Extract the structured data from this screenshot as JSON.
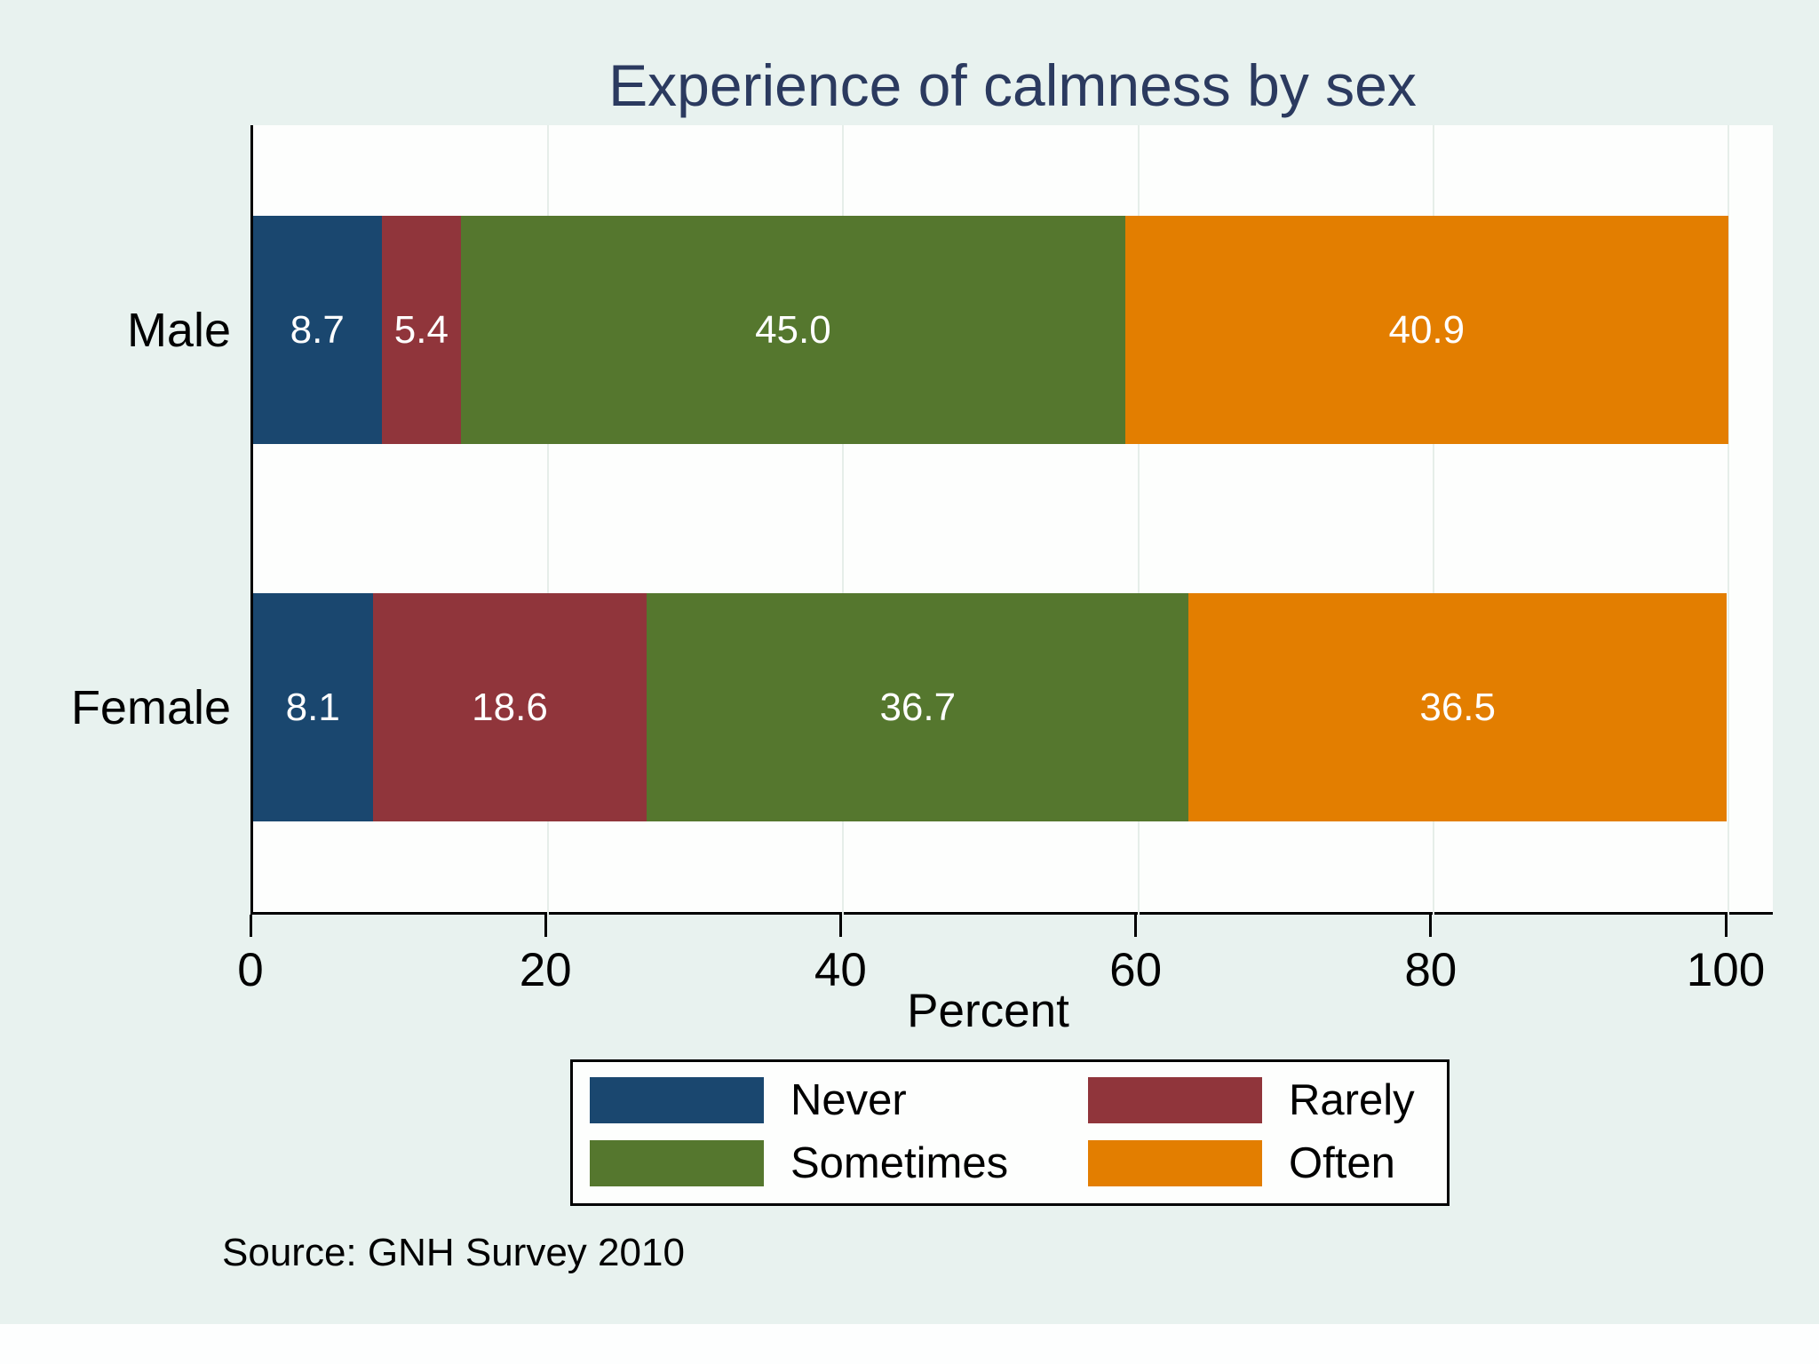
{
  "chart_data": {
    "type": "bar",
    "orientation": "horizontal",
    "stacked": true,
    "percent_stacked": true,
    "title": "Experience of calmness by sex",
    "xlabel": "Percent",
    "xlim": [
      0,
      100
    ],
    "xticks": [
      0,
      20,
      40,
      60,
      80,
      100
    ],
    "grid": true,
    "categories": [
      "Male",
      "Female"
    ],
    "series": [
      {
        "name": "Never",
        "color": "#1a476f",
        "values": [
          8.7,
          8.1
        ]
      },
      {
        "name": "Rarely",
        "color": "#90353b",
        "values": [
          5.4,
          18.6
        ]
      },
      {
        "name": "Sometimes",
        "color": "#55772e",
        "values": [
          45.0,
          36.7
        ]
      },
      {
        "name": "Often",
        "color": "#e37e00",
        "values": [
          40.9,
          36.5
        ]
      }
    ],
    "value_labels": {
      "Male": [
        "8.7",
        "5.4",
        "45.0",
        "40.9"
      ],
      "Female": [
        "8.1",
        "18.6",
        "36.7",
        "36.5"
      ]
    },
    "legend_position": "bottom",
    "legend_entries": [
      "Never",
      "Rarely",
      "Sometimes",
      "Often"
    ],
    "source_note": "Source: GNH Survey 2010"
  },
  "colors": {
    "background": "#e8f2ef",
    "plot_background": "#fdfefd",
    "title_text": "#2b3a5f",
    "axis_text": "#000000",
    "bar_label_text": "#ffffff",
    "gridline": "#e6eee9"
  }
}
